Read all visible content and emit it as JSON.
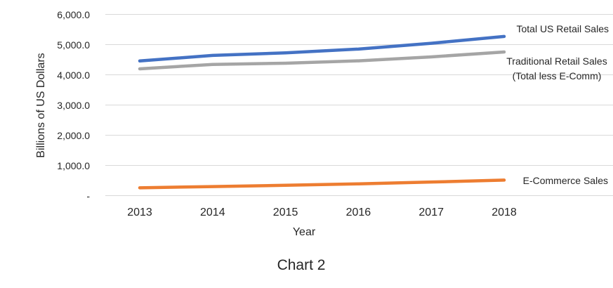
{
  "chart_data": {
    "type": "line",
    "title": "Chart 2",
    "xlabel": "Year",
    "ylabel": "Billions of US Dollars",
    "categories": [
      "2013",
      "2014",
      "2015",
      "2016",
      "2017",
      "2018"
    ],
    "series": [
      {
        "name": "Total US Retail Sales",
        "color": "#4472C4",
        "values": [
          4459,
          4642,
          4727,
          4853,
          5044,
          5270
        ]
      },
      {
        "name": "Traditional Retail Sales (Total less E-Comm)",
        "color": "#A5A5A5",
        "values": [
          4199,
          4343,
          4385,
          4463,
          4594,
          4756
        ]
      },
      {
        "name": "E-Commerce Sales",
        "color": "#ED7D31",
        "values": [
          260,
          299,
          342,
          390,
          450,
          514
        ]
      }
    ],
    "ylim": [
      0,
      6000
    ],
    "yticks": [
      {
        "label": "6,000.0",
        "value": 6000
      },
      {
        "label": "5,000.0",
        "value": 5000
      },
      {
        "label": "4,000.0",
        "value": 4000
      },
      {
        "label": "3,000.0",
        "value": 3000
      },
      {
        "label": "2,000.0",
        "value": 2000
      },
      {
        "label": "1,000.0",
        "value": 1000
      },
      {
        "label": "-",
        "value": 0
      }
    ],
    "grid": true,
    "legend_position": "labels-at-line-ends",
    "gridline_color": "#D9D9D9",
    "text_color": "#262626"
  }
}
